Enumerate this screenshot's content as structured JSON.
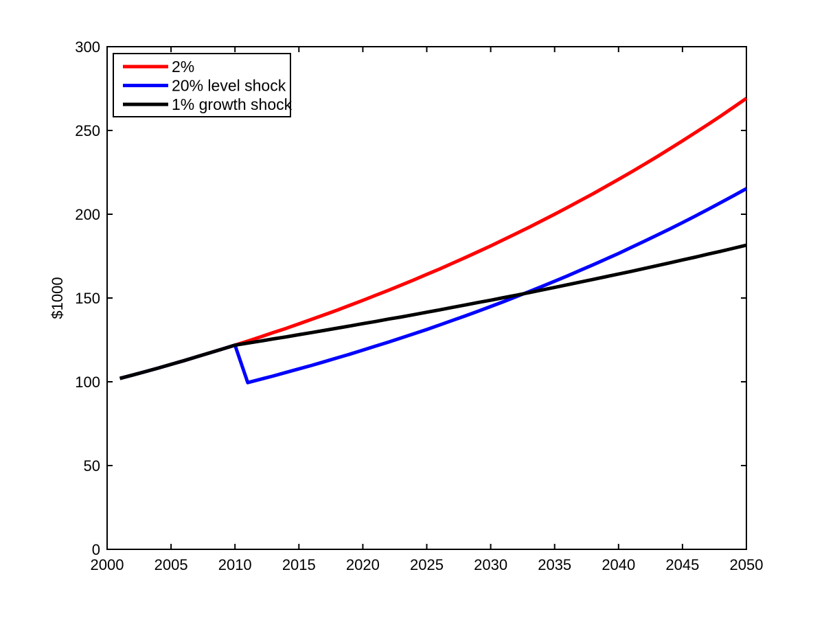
{
  "figure": {
    "background": "#ffffff",
    "axis_color": "#000000"
  },
  "chart_data": {
    "type": "line",
    "title": "",
    "xlabel": "",
    "ylabel": "$1000",
    "xlim": [
      2000,
      2050
    ],
    "ylim": [
      0,
      300
    ],
    "xticks": [
      2000,
      2005,
      2010,
      2015,
      2020,
      2025,
      2030,
      2035,
      2040,
      2045,
      2050
    ],
    "yticks": [
      0,
      50,
      100,
      150,
      200,
      250,
      300
    ],
    "grid": false,
    "legend_position": "top-left",
    "line_width": 5,
    "x": [
      2001,
      2002,
      2003,
      2004,
      2005,
      2006,
      2007,
      2008,
      2009,
      2010,
      2011,
      2012,
      2013,
      2014,
      2015,
      2016,
      2017,
      2018,
      2019,
      2020,
      2021,
      2022,
      2023,
      2024,
      2025,
      2026,
      2027,
      2028,
      2029,
      2030,
      2031,
      2032,
      2033,
      2034,
      2035,
      2036,
      2037,
      2038,
      2039,
      2040,
      2041,
      2042,
      2043,
      2044,
      2045,
      2046,
      2047,
      2048,
      2049,
      2050
    ],
    "series": [
      {
        "name": "2%",
        "color": "#ff0000",
        "values": [
          102.0,
          104.0,
          106.1,
          108.2,
          110.4,
          112.6,
          114.9,
          117.2,
          119.5,
          121.9,
          124.3,
          126.8,
          129.4,
          131.9,
          134.6,
          137.3,
          140.0,
          142.8,
          145.7,
          148.6,
          151.6,
          154.6,
          157.7,
          160.8,
          164.1,
          167.3,
          170.7,
          174.1,
          177.6,
          181.1,
          184.8,
          188.5,
          192.2,
          196.1,
          200.0,
          204.0,
          208.1,
          212.2,
          216.5,
          220.8,
          225.2,
          229.7,
          234.3,
          239.0,
          243.8,
          248.7,
          253.6,
          258.7,
          263.9,
          269.2
        ]
      },
      {
        "name": "20% level shock",
        "color": "#0000ff",
        "values": [
          102.0,
          104.0,
          106.1,
          108.2,
          110.4,
          112.6,
          114.9,
          117.2,
          119.5,
          121.9,
          99.5,
          101.5,
          103.5,
          105.6,
          107.7,
          109.8,
          112.0,
          114.3,
          116.5,
          118.9,
          121.3,
          123.7,
          126.2,
          128.7,
          131.2,
          133.9,
          136.6,
          139.3,
          142.1,
          144.9,
          147.8,
          150.8,
          153.8,
          156.9,
          160.0,
          163.2,
          166.5,
          169.8,
          173.2,
          176.6,
          180.2,
          183.8,
          187.5,
          191.2,
          195.0,
          198.9,
          202.9,
          207.0,
          211.1,
          215.3
        ]
      },
      {
        "name": "1% growth shock",
        "color": "#000000",
        "values": [
          102.0,
          104.0,
          106.1,
          108.2,
          110.4,
          112.6,
          114.9,
          117.2,
          119.5,
          121.9,
          123.1,
          124.3,
          125.6,
          126.8,
          128.1,
          129.4,
          130.7,
          132.0,
          133.3,
          134.7,
          136.0,
          137.4,
          138.7,
          140.1,
          141.5,
          142.9,
          144.4,
          145.8,
          147.3,
          148.7,
          150.2,
          151.7,
          153.2,
          154.8,
          156.3,
          157.9,
          159.5,
          161.1,
          162.7,
          164.3,
          165.9,
          167.6,
          169.3,
          171.0,
          172.7,
          174.4,
          176.2,
          177.9,
          179.7,
          181.5
        ]
      }
    ]
  }
}
